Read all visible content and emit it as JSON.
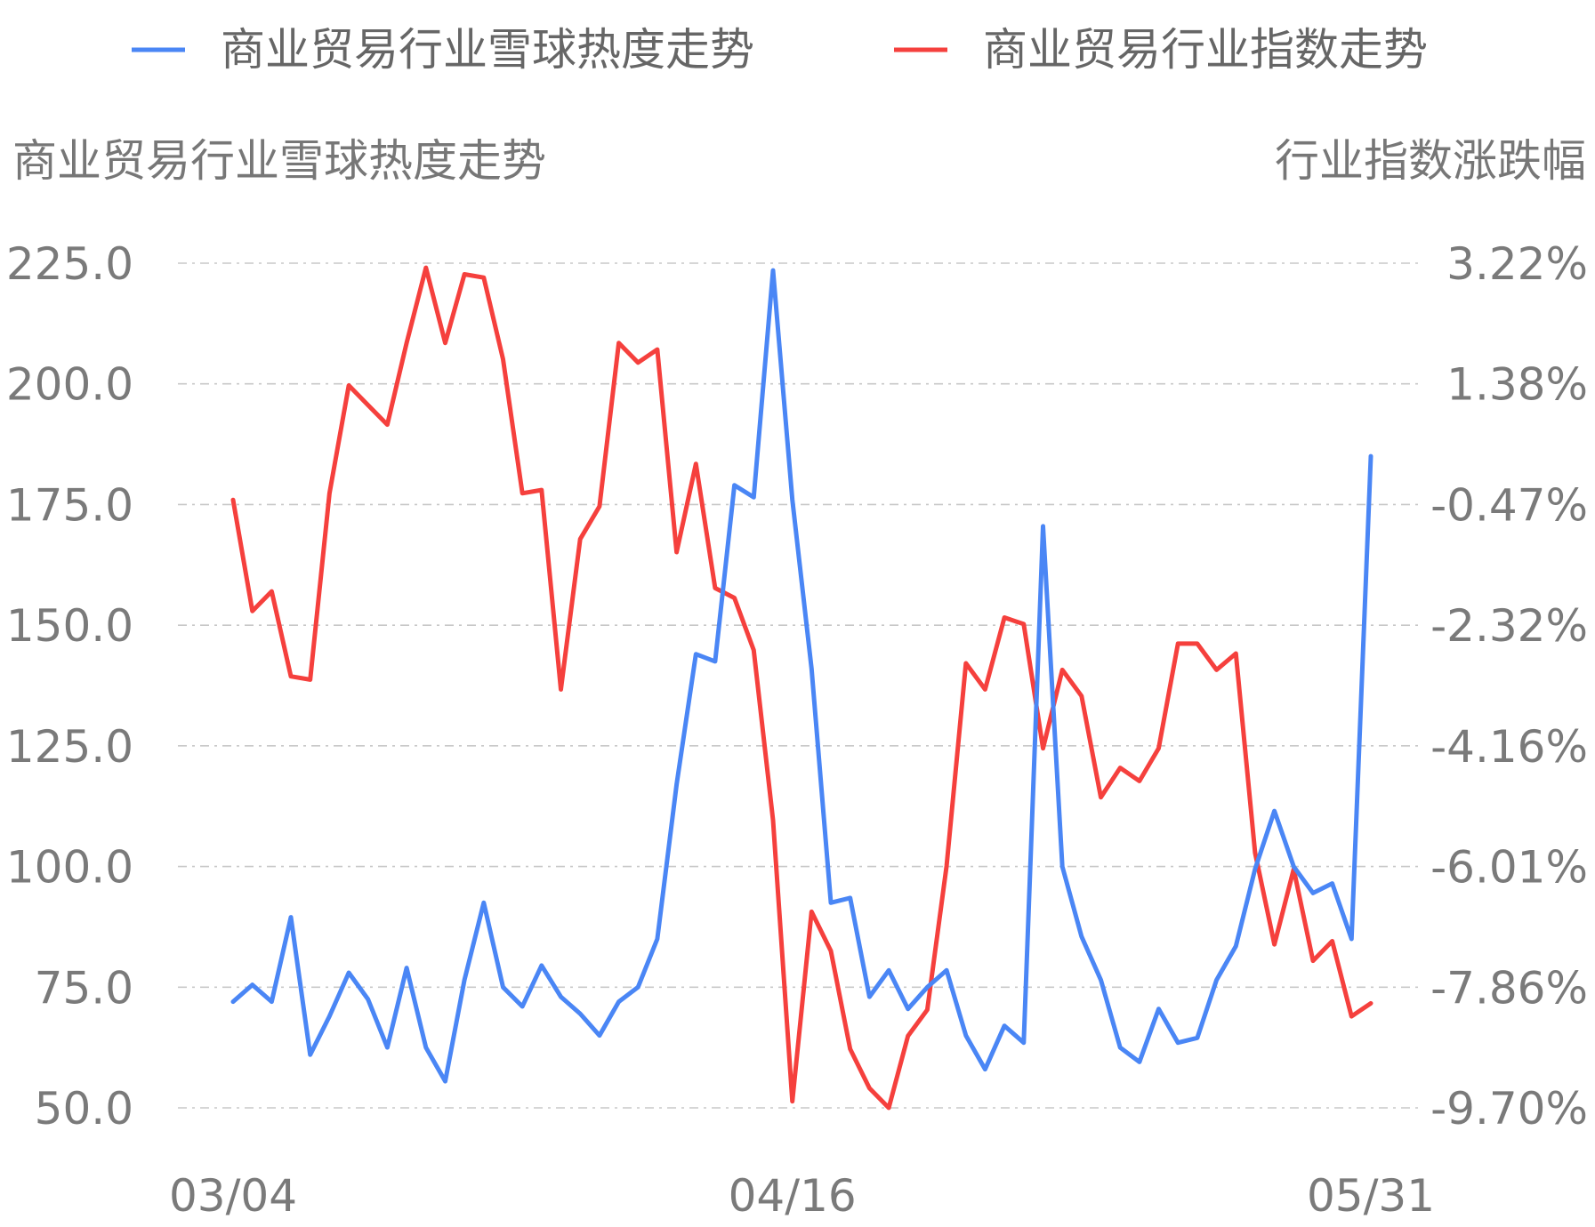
{
  "legend": {
    "heat_label": "商业贸易行业雪球热度走势",
    "index_label": "商业贸易行业指数走势"
  },
  "axes": {
    "left_title": "商业贸易行业雪球热度走势",
    "right_title": "行业指数涨跌幅"
  },
  "colors": {
    "heat": "#4a86f5",
    "index": "#f5403d"
  },
  "chart_data": {
    "type": "line",
    "x_tick_labels": [
      "03/04",
      "04/16",
      "05/31"
    ],
    "x_tick_indices": [
      0,
      29,
      59
    ],
    "y_left": {
      "ticks": [
        "225.0",
        "200.0",
        "175.0",
        "150.0",
        "125.0",
        "100.0",
        "75.0",
        "50.0"
      ],
      "ylim": [
        50,
        225
      ]
    },
    "y_right": {
      "ticks": [
        "3.22%",
        "1.38%",
        "-0.47%",
        "-2.32%",
        "-4.16%",
        "-6.01%",
        "-7.86%",
        "-9.70%"
      ],
      "ylim": [
        -9.7,
        3.22
      ]
    },
    "grid": true,
    "legend_position": "top",
    "series": [
      {
        "name": "商业贸易行业雪球热度走势",
        "axis": "left",
        "values": [
          72.0,
          75.5,
          72.0,
          89.5,
          61.0,
          69.0,
          78.0,
          72.5,
          62.5,
          79.0,
          62.5,
          55.5,
          76.5,
          92.5,
          75.0,
          71.0,
          79.5,
          73.0,
          69.5,
          65.0,
          72.0,
          75.0,
          85.0,
          117.0,
          144.0,
          142.5,
          179.0,
          176.5,
          223.5,
          176.0,
          141.0,
          92.5,
          93.5,
          73.0,
          78.5,
          70.5,
          75.0,
          78.5,
          65.0,
          58.0,
          67.0,
          63.5,
          170.5,
          100.0,
          85.5,
          76.5,
          62.5,
          59.5,
          70.5,
          63.5,
          64.5,
          76.5,
          83.5,
          99.5,
          111.5,
          100.0,
          94.5,
          96.5,
          85.0,
          185.0
        ]
      },
      {
        "name": "商业贸易行业指数走势",
        "axis": "right",
        "values": [
          -0.4,
          -2.1,
          -1.8,
          -3.1,
          -3.15,
          -0.3,
          1.35,
          1.05,
          0.75,
          2.0,
          3.15,
          2.0,
          3.05,
          3.0,
          1.75,
          -0.3,
          -0.25,
          -3.3,
          -1.0,
          -0.5,
          2.0,
          1.7,
          1.9,
          -1.2,
          0.15,
          -1.75,
          -1.9,
          -2.7,
          -5.3,
          -9.6,
          -6.7,
          -7.3,
          -8.8,
          -9.4,
          -9.7,
          -8.6,
          -8.2,
          -6.0,
          -2.9,
          -3.3,
          -2.2,
          -2.3,
          -4.2,
          -3.0,
          -3.4,
          -4.95,
          -4.5,
          -4.7,
          -4.2,
          -2.6,
          -2.6,
          -3.0,
          -2.75,
          -5.8,
          -7.2,
          -6.05,
          -7.45,
          -7.15,
          -8.3,
          -8.1
        ]
      }
    ]
  }
}
